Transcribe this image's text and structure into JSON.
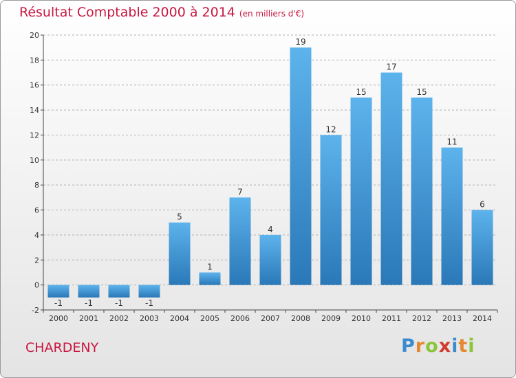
{
  "title": "Résultat Comptable 2000 à 2014",
  "subtitle": "(en milliers d'€)",
  "commune": "CHARDENY",
  "brand": {
    "text": "Proxiti",
    "letter_colors": [
      "#3a8ccf",
      "#e5882f",
      "#8cc43a",
      "#d33a2f",
      "#3a8ccf",
      "#e5882f",
      "#8cc43a"
    ]
  },
  "colors": {
    "title": "#c8173f",
    "bar_top": "#5db3ec",
    "bar_bottom": "#2a78b8",
    "axis": "#444444",
    "grid": "#b0b0b0",
    "label": "#333333"
  },
  "chart_data": {
    "type": "bar",
    "categories": [
      "2000",
      "2001",
      "2002",
      "2003",
      "2004",
      "2005",
      "2006",
      "2007",
      "2008",
      "2009",
      "2010",
      "2011",
      "2012",
      "2013",
      "2014"
    ],
    "values": [
      -1,
      -1,
      -1,
      -1,
      5,
      1,
      7,
      4,
      19,
      12,
      15,
      17,
      15,
      11,
      6
    ],
    "data_labels": [
      "-1",
      "-1",
      "-1",
      "-1",
      "5",
      "1",
      "7",
      "4",
      "19",
      "12",
      "15",
      "17",
      "15",
      "11",
      "6"
    ],
    "title": "Résultat Comptable 2000 à 2014",
    "xlabel": "",
    "ylabel": "",
    "ylim": [
      -2,
      20
    ],
    "yticks": [
      -2,
      0,
      2,
      4,
      6,
      8,
      10,
      12,
      14,
      16,
      18,
      20
    ],
    "grid": "horizontal-dashed",
    "legend": "none"
  }
}
